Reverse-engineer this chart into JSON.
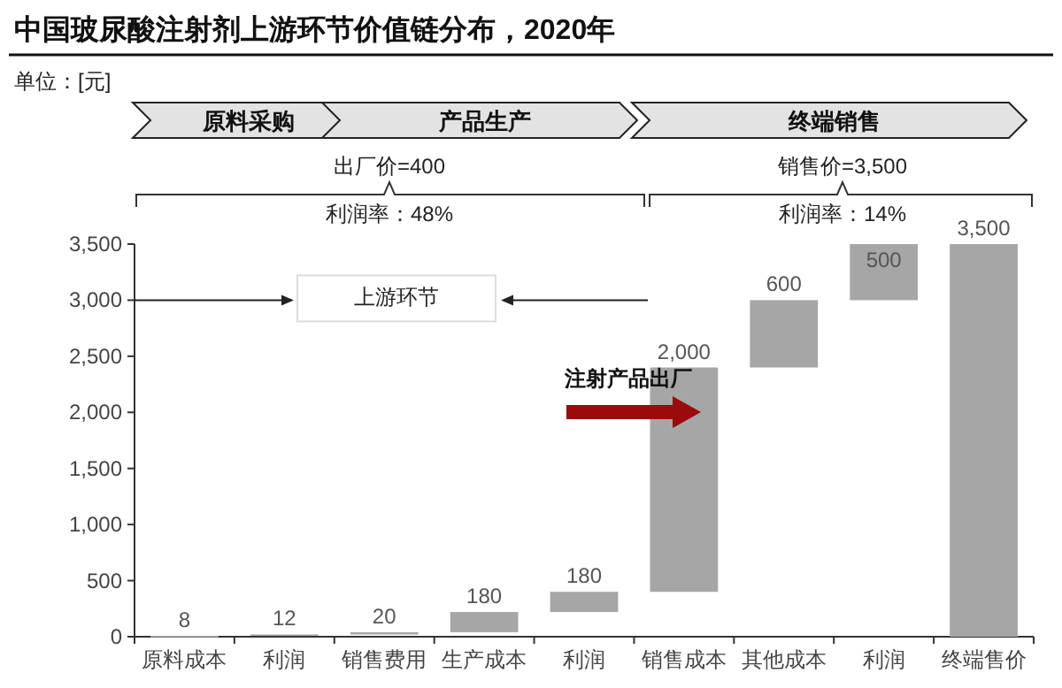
{
  "chart_data": {
    "type": "bar",
    "title": "中国玻尿酸注射剂上游环节价值链分布，2020年",
    "categories": [
      "原料成本",
      "利润",
      "销售费用",
      "生产成本",
      "利润",
      "销售成本",
      "其他成本",
      "利润",
      "终端售价"
    ],
    "values": [
      8,
      12,
      20,
      180,
      180,
      2000,
      600,
      500,
      3500
    ],
    "base": [
      0,
      8,
      20,
      40,
      220,
      400,
      2400,
      3000,
      0
    ],
    "color": "#a6a6a6",
    "value_labels": [
      "8",
      "12",
      "20",
      "180",
      "180",
      "2,000",
      "600",
      "500",
      "3,500"
    ],
    "ylim": [
      0,
      3500
    ],
    "yticks": [
      0,
      {
        "value": 500,
        "label": "500"
      },
      {
        "value": 1000,
        "label": "1,000"
      },
      {
        "value": 1500,
        "label": "1,500"
      },
      {
        "value": 2000,
        "label": "2,000"
      },
      {
        "value": 2500,
        "label": "2,500"
      },
      {
        "value": 3000,
        "label": "3,000"
      },
      {
        "value": 3500,
        "label": "3,500"
      }
    ],
    "annotations": [
      "单位：[元]",
      "原料采购",
      "产品生产",
      "终端销售",
      "出厂价=400",
      "利润率：48%",
      "销售价=3,500",
      "利润率：14%",
      "上游环节",
      "注射产品出厂"
    ]
  }
}
